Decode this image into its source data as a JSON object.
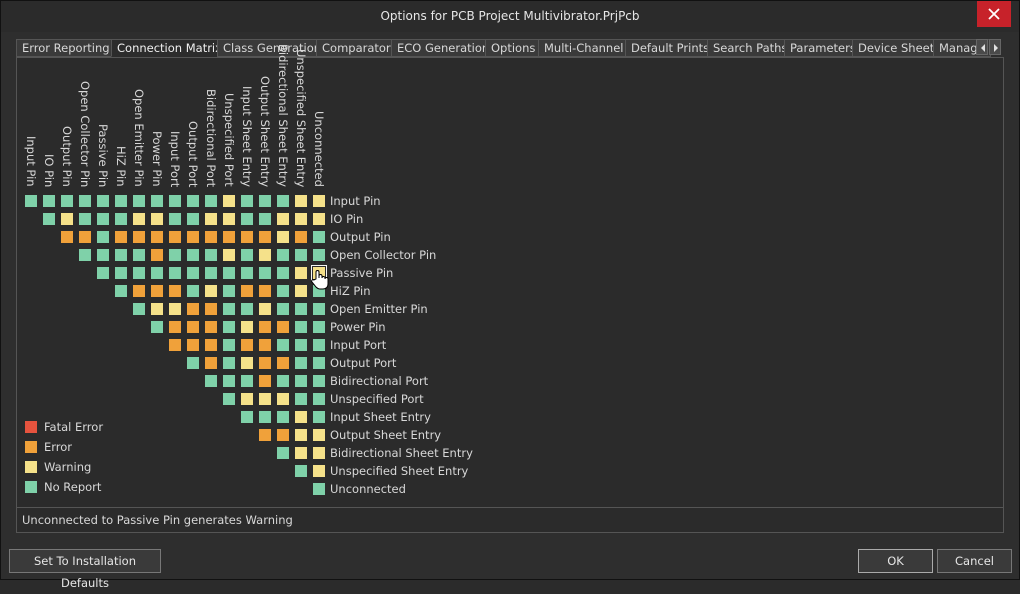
{
  "window": {
    "title": "Options for PCB Project Multivibrator.PrjPcb"
  },
  "tabs": [
    {
      "label": "Error Reporting",
      "active": false
    },
    {
      "label": "Connection Matrix",
      "active": true
    },
    {
      "label": "Class Generation",
      "active": false
    },
    {
      "label": "Comparator",
      "active": false
    },
    {
      "label": "ECO Generation",
      "active": false
    },
    {
      "label": "Options",
      "active": false
    },
    {
      "label": "Multi-Channel",
      "active": false
    },
    {
      "label": "Default Prints",
      "active": false
    },
    {
      "label": "Search Paths",
      "active": false
    },
    {
      "label": "Parameters",
      "active": false
    },
    {
      "label": "Device Sheets",
      "active": false
    },
    {
      "label": "Manag",
      "active": false
    }
  ],
  "tab_scroll": {
    "left_icon": "chevron-left-icon",
    "right_icon": "chevron-right-icon"
  },
  "colors": {
    "fatal": "#e6533e",
    "error": "#f0a13a",
    "warning": "#f5e18a",
    "none": "#7fd1a9"
  },
  "matrix": {
    "labels": [
      "Input Pin",
      "IO Pin",
      "Output Pin",
      "Open Collector Pin",
      "Passive Pin",
      "HiZ Pin",
      "Open Emitter Pin",
      "Power Pin",
      "Input Port",
      "Output Port",
      "Bidirectional Port",
      "Unspecified Port",
      "Input Sheet Entry",
      "Output Sheet Entry",
      "Bidirectional Sheet Entry",
      "Unspecified Sheet Entry",
      "Unconnected"
    ],
    "rows": [
      [
        "none",
        "none",
        "none",
        "none",
        "none",
        "none",
        "none",
        "none",
        "none",
        "none",
        "none",
        "warning",
        "none",
        "none",
        "none",
        "warning",
        "warning"
      ],
      [
        "none",
        "warning",
        "none",
        "none",
        "none",
        "warning",
        "warning",
        "none",
        "none",
        "warning",
        "warning",
        "none",
        "none",
        "warning",
        "warning"
      ],
      [
        "error",
        "error",
        "none",
        "error",
        "error",
        "error",
        "error",
        "error",
        "error",
        "error",
        "error",
        "error",
        "warning",
        "error"
      ],
      [
        "none",
        "none",
        "none",
        "none",
        "error",
        "none",
        "none",
        "none",
        "warning",
        "none",
        "warning",
        "none",
        "none"
      ],
      [
        "none",
        "none",
        "none",
        "none",
        "none",
        "none",
        "none",
        "none",
        "none",
        "none",
        "none",
        "warning"
      ],
      [
        "none",
        "error",
        "error",
        "error",
        "none",
        "warning",
        "none",
        "error",
        "error",
        "none",
        "warning"
      ],
      [
        "none",
        "warning",
        "warning",
        "error",
        "error",
        "none",
        "none",
        "warning",
        "none",
        "none"
      ],
      [
        "none",
        "error",
        "error",
        "error",
        "none",
        "warning",
        "error",
        "error",
        "none"
      ],
      [
        "error",
        "error",
        "error",
        "none",
        "error",
        "error",
        "none",
        "none"
      ],
      [
        "none",
        "error",
        "none",
        "warning",
        "error",
        "error",
        "none"
      ],
      [
        "none",
        "none",
        "none",
        "error",
        "none",
        "none"
      ],
      [
        "none",
        "warning",
        "warning",
        "warning",
        "none"
      ],
      [
        "none",
        "none",
        "none",
        "warning"
      ],
      [
        "error",
        "error",
        "warning"
      ],
      [
        "none",
        "warning"
      ],
      [
        "none"
      ],
      []
    ],
    "last_col": [
      "warning",
      "warning",
      "none",
      "none",
      "warning",
      "none",
      "none",
      "none",
      "none",
      "none",
      "none",
      "none",
      "none",
      "warning",
      "warning",
      "warning",
      "none"
    ],
    "selected_row": 4
  },
  "legend": [
    {
      "key": "fatal",
      "label": "Fatal Error"
    },
    {
      "key": "error",
      "label": "Error"
    },
    {
      "key": "warning",
      "label": "Warning"
    },
    {
      "key": "none",
      "label": "No Report"
    }
  ],
  "status": "Unconnected to Passive Pin generates Warning",
  "buttons": {
    "defaults": "Set To Installation Defaults",
    "ok": "OK",
    "cancel": "Cancel"
  }
}
